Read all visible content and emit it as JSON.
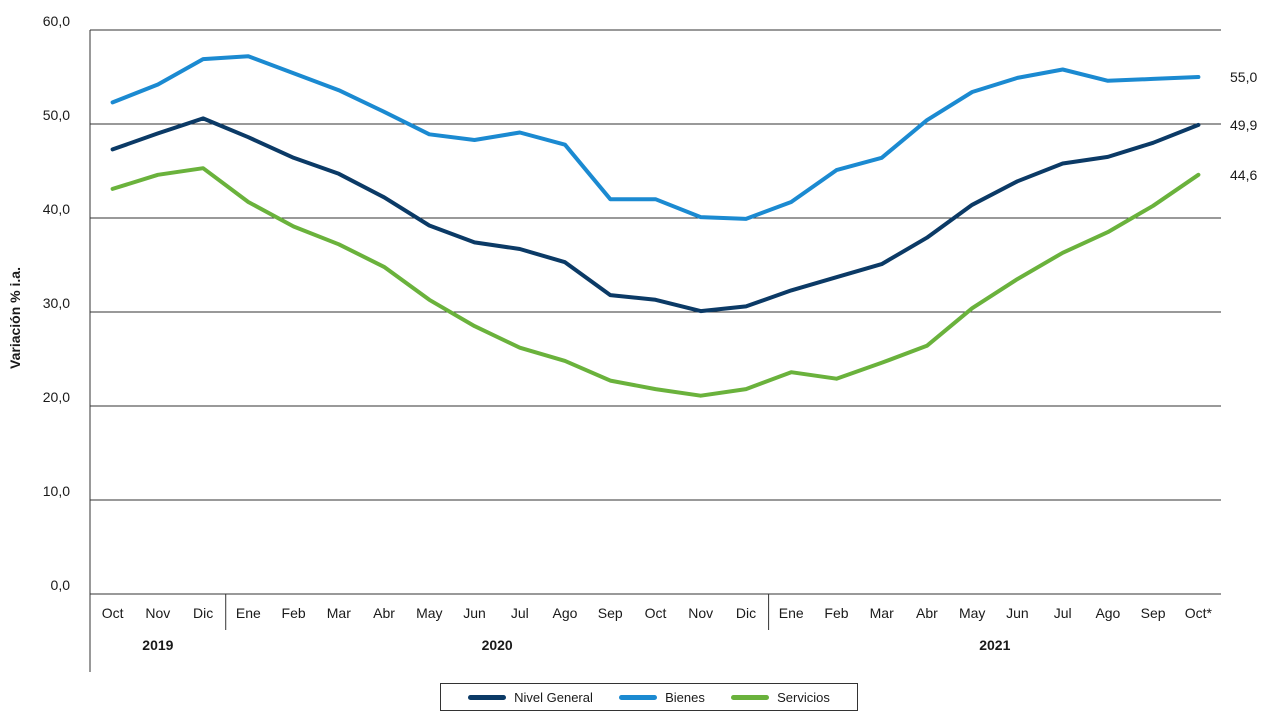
{
  "chart_data": {
    "type": "line",
    "ylabel": "Variación % i.a.",
    "ylim": [
      0,
      60
    ],
    "yticks": [
      "0,0",
      "10,0",
      "20,0",
      "30,0",
      "40,0",
      "50,0",
      "60,0"
    ],
    "categories": [
      "Oct",
      "Nov",
      "Dic",
      "Ene",
      "Feb",
      "Mar",
      "Abr",
      "May",
      "Jun",
      "Jul",
      "Ago",
      "Sep",
      "Oct",
      "Nov",
      "Dic",
      "Ene",
      "Feb",
      "Mar",
      "Abr",
      "May",
      "Jun",
      "Jul",
      "Ago",
      "Sep",
      "Oct*"
    ],
    "years": [
      {
        "label": "2019",
        "start": 0,
        "end": 2
      },
      {
        "label": "2020",
        "start": 3,
        "end": 14
      },
      {
        "label": "2021",
        "start": 15,
        "end": 24
      }
    ],
    "grid": true,
    "legend_position": "bottom",
    "series": [
      {
        "name": "Nivel General",
        "color": "#0b3a66",
        "values": [
          47.3,
          49.0,
          50.6,
          48.6,
          46.4,
          44.7,
          42.2,
          39.2,
          37.4,
          36.7,
          35.3,
          31.8,
          31.3,
          30.1,
          30.6,
          32.3,
          33.7,
          35.1,
          37.9,
          41.4,
          43.9,
          45.8,
          46.5,
          48.0,
          49.9
        ],
        "end_label": "49,9"
      },
      {
        "name": "Bienes",
        "color": "#1b8ad1",
        "values": [
          52.3,
          54.2,
          56.9,
          57.2,
          55.4,
          53.6,
          51.3,
          48.9,
          48.3,
          49.1,
          47.8,
          42.0,
          42.0,
          40.1,
          39.9,
          41.7,
          45.1,
          46.4,
          50.4,
          53.4,
          54.9,
          55.8,
          54.6,
          54.8,
          55.0
        ],
        "end_label": "55,0"
      },
      {
        "name": "Servicios",
        "color": "#6ab23c",
        "values": [
          43.1,
          44.6,
          45.3,
          41.7,
          39.1,
          37.2,
          34.8,
          31.3,
          28.5,
          26.2,
          24.8,
          22.7,
          21.8,
          21.1,
          21.8,
          23.6,
          22.9,
          24.6,
          26.4,
          30.4,
          33.5,
          36.3,
          38.5,
          41.3,
          44.6
        ],
        "end_label": "44,6"
      }
    ]
  }
}
